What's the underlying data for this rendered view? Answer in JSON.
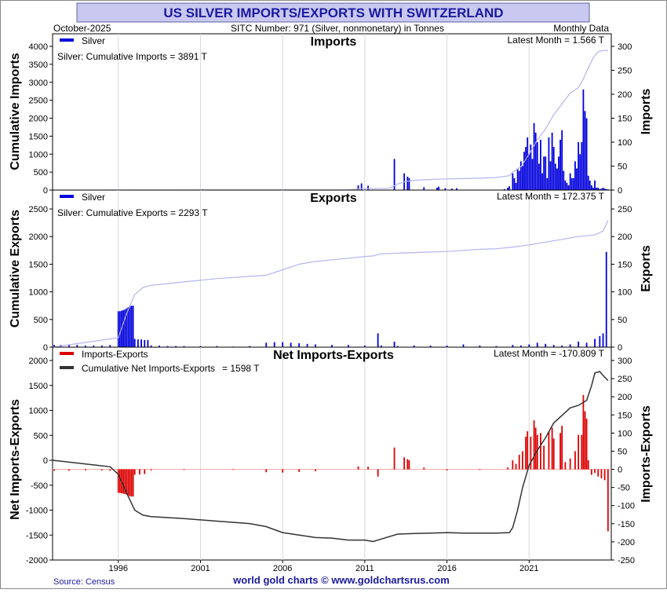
{
  "title": "US SILVER IMPORTS/EXPORTS WITH SWITZERLAND",
  "header": {
    "date": "October-2025",
    "subtitle": "SITC Number: 971 (Silver, nonmonetary) in Tonnes",
    "frequency": "Monthly Data"
  },
  "footer": {
    "source": "Source: Census",
    "credit": "world gold charts © www.goldchartsrus.com"
  },
  "colors": {
    "title_bg": "#c8c8f0",
    "title_text": "#1a1aa0",
    "imports_bar": "#0000dd",
    "exports_bar": "#0000dd",
    "cumulative_line": "#b4b4f0",
    "net_bar": "#dd0000",
    "net_cum_line": "#333333",
    "grid": "#d8d8d8",
    "footer_text": "#1a1aa0"
  },
  "x_axis": {
    "start_year": 1992.0,
    "end_year": 2026.0,
    "tick_years": [
      "1996",
      "2001",
      "2006",
      "2011",
      "2016",
      "2021"
    ]
  },
  "chart_data": [
    {
      "type": "bar+line",
      "title": "Imports",
      "legend": [
        "Silver"
      ],
      "annotation": "Silver: Cumulative Imports = 3891 T",
      "latest": "Latest Month = 1.566 T",
      "ylabel_left": "Cumulative Imports",
      "ylabel_right": "Imports",
      "ylim_left": [
        0,
        4000
      ],
      "ylim_right": [
        0,
        300
      ],
      "left_ticks": [
        "0",
        "500",
        "1000",
        "1500",
        "2000",
        "2500",
        "3000",
        "3500",
        "4000"
      ],
      "right_ticks": [
        "0",
        "50",
        "100",
        "150",
        "200",
        "250",
        "300"
      ],
      "series": [
        {
          "name": "Monthly imports (right axis, tonnes)",
          "x": [
            2010.6,
            2010.8,
            2011.2,
            2012.8,
            2013.4,
            2013.6,
            2013.7,
            2014.6,
            2015.4,
            2015.5,
            2015.9,
            2016.3,
            2016.6,
            2019.5,
            2019.7,
            2019.8,
            2020.0,
            2020.1,
            2020.2,
            2020.3,
            2020.4,
            2020.5,
            2020.6,
            2020.7,
            2020.8,
            2020.9,
            2021.0,
            2021.1,
            2021.2,
            2021.3,
            2021.4,
            2021.5,
            2021.6,
            2021.7,
            2021.8,
            2021.9,
            2022.0,
            2022.1,
            2022.2,
            2022.3,
            2022.4,
            2022.5,
            2022.6,
            2022.7,
            2022.8,
            2022.9,
            2023.0,
            2023.1,
            2023.2,
            2023.3,
            2023.4,
            2023.5,
            2023.6,
            2023.7,
            2023.8,
            2023.9,
            2024.0,
            2024.1,
            2024.2,
            2024.3,
            2024.4,
            2024.5,
            2024.6,
            2024.7,
            2024.8,
            2024.9,
            2025.0,
            2025.1,
            2025.2,
            2025.3,
            2025.4,
            2025.5,
            2025.6,
            2025.7,
            2025.8
          ],
          "values": [
            10,
            14,
            9,
            65,
            35,
            28,
            25,
            6,
            5,
            7,
            4,
            3,
            4,
            2,
            5,
            8,
            35,
            25,
            15,
            45,
            40,
            60,
            50,
            80,
            90,
            110,
            75,
            95,
            65,
            140,
            120,
            100,
            55,
            105,
            35,
            70,
            70,
            25,
            110,
            60,
            120,
            90,
            55,
            45,
            70,
            105,
            125,
            40,
            20,
            15,
            10,
            35,
            25,
            25,
            60,
            45,
            100,
            75,
            100,
            210,
            165,
            150,
            30,
            20,
            10,
            5,
            20,
            5,
            5,
            2,
            3,
            5,
            3,
            2,
            1.566
          ]
        },
        {
          "name": "Cumulative imports (left axis, tonnes)",
          "x": [
            1992.0,
            2010.0,
            2010.5,
            2011.0,
            2012.5,
            2013.0,
            2013.5,
            2014.0,
            2015.0,
            2016.0,
            2017.0,
            2018.0,
            2019.0,
            2019.8,
            2020.0,
            2020.5,
            2021.0,
            2021.5,
            2022.0,
            2022.5,
            2023.0,
            2023.5,
            2024.0,
            2024.3,
            2024.6,
            2024.9,
            2025.2,
            2025.5,
            2025.8
          ],
          "values": [
            0,
            5,
            25,
            40,
            50,
            170,
            240,
            270,
            295,
            310,
            320,
            330,
            350,
            400,
            500,
            650,
            1000,
            1400,
            1700,
            2100,
            2400,
            2700,
            2850,
            3100,
            3400,
            3680,
            3850,
            3885,
            3891
          ]
        }
      ]
    },
    {
      "type": "bar+line",
      "title": "Exports",
      "legend": [
        "Silver"
      ],
      "annotation": "Silver: Cumulative Exports = 2293 T",
      "latest": "Latest Month = 172.375 T",
      "ylabel_left": "Cumulative Exports",
      "ylabel_right": "Exports",
      "ylim_left": [
        0,
        2600
      ],
      "ylim_right": [
        0,
        260
      ],
      "left_ticks": [
        "0",
        "500",
        "1000",
        "1500",
        "2000",
        "2500"
      ],
      "right_ticks": [
        "0",
        "50",
        "100",
        "150",
        "200",
        "250"
      ],
      "series": [
        {
          "name": "Monthly exports (right axis, tonnes)",
          "x": [
            1992.1,
            1992.5,
            1993.0,
            1993.5,
            1994.0,
            1994.5,
            1995.0,
            1995.5,
            1996.0,
            1996.1,
            1996.2,
            1996.3,
            1996.4,
            1996.5,
            1996.6,
            1996.7,
            1996.8,
            1996.9,
            1997.0,
            1997.2,
            1997.4,
            1997.6,
            1997.8,
            1998.0,
            1998.5,
            1999.0,
            1999.5,
            2000.0,
            2001.0,
            2002.0,
            2003.0,
            2004.0,
            2005.0,
            2005.5,
            2006.0,
            2006.5,
            2007.0,
            2007.5,
            2008.0,
            2009.0,
            2010.0,
            2011.0,
            2011.8,
            2012.0,
            2012.8,
            2013.0,
            2014.0,
            2015.0,
            2016.0,
            2017.0,
            2018.0,
            2019.0,
            2020.0,
            2020.5,
            2021.0,
            2021.5,
            2022.0,
            2022.5,
            2023.0,
            2023.5,
            2024.0,
            2024.5,
            2025.0,
            2025.3,
            2025.5,
            2025.7
          ],
          "values": [
            4,
            4,
            4,
            4,
            3,
            3,
            3,
            4,
            65,
            65,
            66,
            67,
            68,
            70,
            72,
            74,
            75,
            75,
            15,
            14,
            14,
            13,
            13,
            3,
            3,
            2,
            2,
            2,
            2,
            2,
            1,
            2,
            8,
            9,
            9,
            8,
            7,
            6,
            5,
            4,
            4,
            3,
            25,
            3,
            10,
            2,
            3,
            3,
            3,
            5,
            3,
            2,
            4,
            3,
            5,
            8,
            6,
            4,
            3,
            5,
            10,
            8,
            15,
            20,
            25,
            172.375
          ]
        },
        {
          "name": "Cumulative exports (left axis, tonnes)",
          "x": [
            1992.0,
            1996.0,
            1996.5,
            1997.0,
            1997.5,
            1998.0,
            1999.0,
            2000.0,
            2001.0,
            2002.0,
            2003.0,
            2004.0,
            2005.0,
            2006.0,
            2007.0,
            2008.0,
            2009.0,
            2010.0,
            2011.0,
            2011.5,
            2012.0,
            2013.0,
            2014.0,
            2015.0,
            2016.0,
            2017.0,
            2018.0,
            2019.0,
            2020.0,
            2021.0,
            2022.0,
            2023.0,
            2024.0,
            2025.0,
            2025.5,
            2025.8
          ],
          "values": [
            0,
            170,
            600,
            950,
            1080,
            1120,
            1150,
            1180,
            1210,
            1240,
            1260,
            1280,
            1300,
            1400,
            1500,
            1550,
            1580,
            1610,
            1640,
            1650,
            1690,
            1700,
            1710,
            1720,
            1730,
            1750,
            1770,
            1780,
            1810,
            1850,
            1900,
            1950,
            2000,
            2030,
            2100,
            2293
          ]
        }
      ]
    },
    {
      "type": "bar+line",
      "title": "Net Imports-Exports",
      "legend": [
        "Imports-Exports",
        "Cumulative Net Imports-Exports"
      ],
      "annotation": "= 1598 T",
      "latest": "Latest Month = -170.809 T",
      "ylabel_left": "Net Imports-Exports",
      "ylabel_right": "Imports-Exports",
      "ylim_left": [
        -2000,
        2000
      ],
      "ylim_right": [
        -250,
        300
      ],
      "left_ticks": [
        "-2000",
        "-1500",
        "-1000",
        "-500",
        "0",
        "500",
        "1000",
        "1500",
        "2000"
      ],
      "right_ticks": [
        "-250",
        "-200",
        "-150",
        "-100",
        "-50",
        "0",
        "50",
        "100",
        "150",
        "200",
        "250",
        "300"
      ],
      "series": [
        {
          "name": "Monthly net (right axis, tonnes)",
          "x": [
            1992.1,
            1993.0,
            1994.0,
            1995.0,
            1995.5,
            1996.0,
            1996.1,
            1996.2,
            1996.3,
            1996.4,
            1996.5,
            1996.6,
            1996.7,
            1996.8,
            1996.9,
            1997.0,
            1997.3,
            1997.6,
            1998.0,
            2000.0,
            2003.0,
            2005.0,
            2006.0,
            2007.0,
            2008.0,
            2010.6,
            2011.2,
            2011.8,
            2012.8,
            2013.4,
            2013.6,
            2013.7,
            2014.6,
            2016.0,
            2018.0,
            2019.7,
            2020.0,
            2020.2,
            2020.4,
            2020.6,
            2020.8,
            2020.9,
            2021.1,
            2021.3,
            2021.4,
            2021.5,
            2021.7,
            2021.9,
            2022.2,
            2022.4,
            2022.5,
            2022.9,
            2023.0,
            2023.2,
            2023.5,
            2023.8,
            2024.0,
            2024.2,
            2024.3,
            2024.4,
            2024.5,
            2024.6,
            2024.8,
            2025.0,
            2025.2,
            2025.4,
            2025.6,
            2025.8
          ],
          "values": [
            -4,
            -4,
            -3,
            -3,
            -4,
            -65,
            -65,
            -66,
            -67,
            -68,
            -70,
            -72,
            -74,
            -75,
            -75,
            -15,
            -14,
            -13,
            -3,
            -2,
            -1,
            -8,
            -9,
            -7,
            -5,
            8,
            7,
            -20,
            60,
            33,
            28,
            25,
            5,
            -3,
            -2,
            5,
            25,
            15,
            40,
            50,
            90,
            105,
            90,
            135,
            115,
            95,
            100,
            65,
            105,
            115,
            85,
            100,
            120,
            20,
            30,
            50,
            95,
            95,
            205,
            160,
            140,
            25,
            -15,
            -10,
            -20,
            -25,
            -30,
            -170.809
          ]
        },
        {
          "name": "Cumulative net (left axis, tonnes)",
          "x": [
            1992.0,
            1995.5,
            1996.0,
            1996.5,
            1997.0,
            1997.5,
            1998.0,
            2000.0,
            2002.0,
            2004.0,
            2005.0,
            2006.0,
            2007.0,
            2008.0,
            2009.0,
            2010.0,
            2011.0,
            2011.5,
            2012.0,
            2013.0,
            2014.0,
            2015.0,
            2016.0,
            2017.0,
            2018.0,
            2019.0,
            2019.8,
            2020.0,
            2020.3,
            2020.6,
            2021.0,
            2021.5,
            2022.0,
            2022.5,
            2023.0,
            2023.5,
            2024.0,
            2024.5,
            2024.8,
            2025.0,
            2025.3,
            2025.5,
            2025.8
          ],
          "values": [
            0,
            -130,
            -280,
            -650,
            -1000,
            -1100,
            -1130,
            -1170,
            -1220,
            -1270,
            -1330,
            -1450,
            -1500,
            -1550,
            -1560,
            -1600,
            -1600,
            -1630,
            -1580,
            -1480,
            -1470,
            -1460,
            -1450,
            -1460,
            -1460,
            -1460,
            -1450,
            -1350,
            -1000,
            -550,
            -100,
            200,
            450,
            750,
            900,
            1050,
            1100,
            1200,
            1500,
            1750,
            1780,
            1700,
            1598
          ]
        }
      ]
    }
  ]
}
